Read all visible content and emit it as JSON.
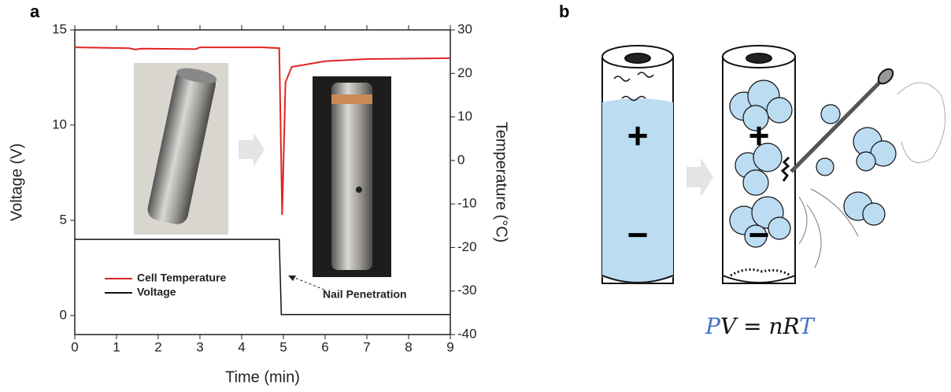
{
  "panel_labels": [
    "a",
    "b"
  ],
  "chart_data": {
    "type": "line",
    "xlabel": "Time (min)",
    "ylabel": "Voltage (V)",
    "y2label": "Temperature (°C)",
    "xlim": [
      0,
      9
    ],
    "xticks": [
      0,
      1,
      2,
      3,
      4,
      5,
      6,
      7,
      8,
      9
    ],
    "ylim": [
      -1,
      15
    ],
    "yticks": [
      0,
      5,
      10,
      15
    ],
    "y2lim": [
      -40,
      30
    ],
    "y2ticks": [
      -40,
      -30,
      -20,
      -10,
      0,
      10,
      20,
      30
    ],
    "legend": "lower left",
    "series": [
      {
        "name": "Cell Temperature",
        "color": "#e02424",
        "axis": "y2",
        "x": [
          0,
          1.3,
          1.45,
          1.6,
          2.9,
          3.0,
          4.5,
          4.9,
          4.97,
          5.05,
          5.2,
          6,
          7,
          9
        ],
        "values": [
          26,
          25.8,
          25.5,
          25.7,
          25.6,
          26,
          26,
          25.8,
          -12.5,
          18,
          21.5,
          22.8,
          23.3,
          23.5
        ]
      },
      {
        "name": "Voltage",
        "color": "#111111",
        "x": [
          0,
          4.9,
          4.95,
          9
        ],
        "values": [
          4.0,
          4.0,
          0.05,
          0.05
        ]
      }
    ],
    "annotation": "Nail Penetration"
  },
  "diagram": {
    "signs": [
      "+",
      "−"
    ],
    "equation": [
      "P",
      "V = nR",
      "T"
    ]
  }
}
